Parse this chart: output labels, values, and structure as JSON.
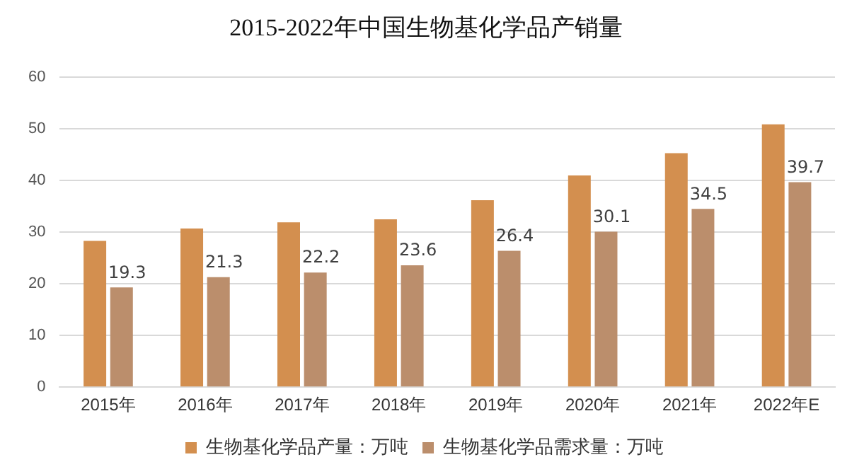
{
  "chart_data": {
    "type": "bar",
    "title": "2015-2022年中国生物基化学品产销量",
    "categories": [
      "2015年",
      "2016年",
      "2017年",
      "2018年",
      "2019年",
      "2020年",
      "2021年",
      "2022年E"
    ],
    "series": [
      {
        "name": "生物基化学品产量：万吨",
        "color": "#d38f4f",
        "values": [
          28.3,
          30.7,
          31.9,
          32.5,
          36.2,
          41.0,
          45.3,
          50.9
        ]
      },
      {
        "name": "生物基化学品需求量：万吨",
        "color": "#bb8e6c",
        "values": [
          19.3,
          21.3,
          22.2,
          23.6,
          26.4,
          30.1,
          34.5,
          39.7
        ],
        "value_labels": [
          "19.3",
          "21.3",
          "22.2",
          "23.6",
          "26.4",
          "30.1",
          "34.5",
          "39.7"
        ]
      }
    ],
    "ylim": [
      0,
      60
    ],
    "yticks": [
      0,
      10,
      20,
      30,
      40,
      50,
      60
    ],
    "grid": "y",
    "legend": "bottom"
  }
}
